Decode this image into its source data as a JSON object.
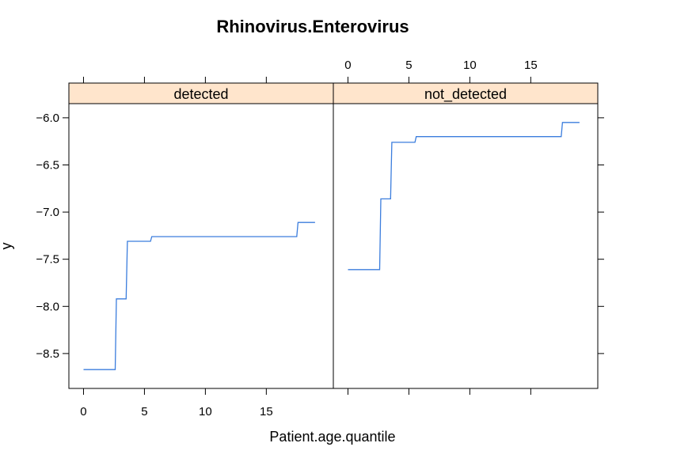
{
  "chart_data": {
    "type": "line",
    "title": "Rhinovirus.Enterovirus",
    "xlabel": "Patient.age.quantile",
    "ylabel": "y",
    "xlim": [
      -1.2,
      20.5
    ],
    "ylim": [
      -8.87,
      -5.85
    ],
    "x_ticks": [
      0,
      5,
      10,
      15
    ],
    "y_ticks": [
      -6.0,
      -6.5,
      -7.0,
      -7.5,
      -8.0,
      -8.5
    ],
    "y_tick_labels": [
      "−6.0",
      "−6.5",
      "−7.0",
      "−7.5",
      "−8.0",
      "−8.5"
    ],
    "grid": false,
    "line_color": "#3B7DDD",
    "strip_color": "#FFE5CC",
    "panels": [
      {
        "label": "detected",
        "series": [
          {
            "x": [
              0,
              2.6,
              2.7,
              3.5,
              3.6,
              5.5,
              5.6,
              17.5,
              17.6,
              19
            ],
            "y": [
              -8.67,
              -8.67,
              -7.92,
              -7.92,
              -7.31,
              -7.31,
              -7.26,
              -7.26,
              -7.11,
              -7.11
            ]
          }
        ]
      },
      {
        "label": "not_detected",
        "series": [
          {
            "x": [
              0,
              2.6,
              2.7,
              3.5,
              3.6,
              5.5,
              5.6,
              17.5,
              17.6,
              19
            ],
            "y": [
              -7.61,
              -7.61,
              -6.86,
              -6.86,
              -6.26,
              -6.26,
              -6.2,
              -6.2,
              -6.05,
              -6.05
            ]
          }
        ]
      }
    ]
  }
}
